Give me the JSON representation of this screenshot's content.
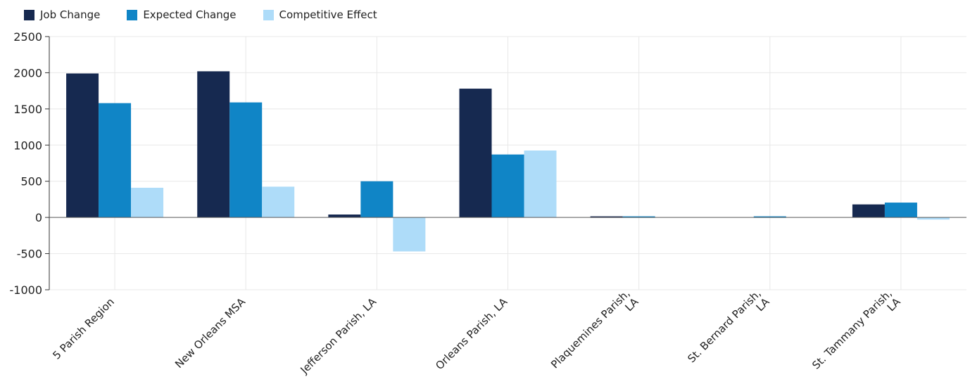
{
  "chart_data": {
    "type": "bar",
    "categories": [
      "5 Parish Region",
      "New Orleans MSA",
      "Jefferson Parish, LA",
      "Orleans Parish, LA",
      "Plaquemines Parish,\nLA",
      "St. Bernard Parish,\nLA",
      "St. Tammany Parish,\nLA"
    ],
    "series": [
      {
        "name": "Job Change",
        "color": "#162950",
        "values": [
          1990,
          2020,
          40,
          1780,
          15,
          0,
          180
        ]
      },
      {
        "name": "Expected Change",
        "color": "#1085c6",
        "values": [
          1580,
          1590,
          500,
          870,
          15,
          15,
          205
        ]
      },
      {
        "name": "Competitive Effect",
        "color": "#aedcf9",
        "values": [
          410,
          425,
          -470,
          925,
          0,
          0,
          -30
        ]
      }
    ],
    "ylim": [
      -1000,
      2500
    ],
    "yticks": [
      -1000,
      -500,
      0,
      500,
      1000,
      1500,
      2000,
      2500
    ],
    "legend_position": "top-left",
    "grid": true
  }
}
